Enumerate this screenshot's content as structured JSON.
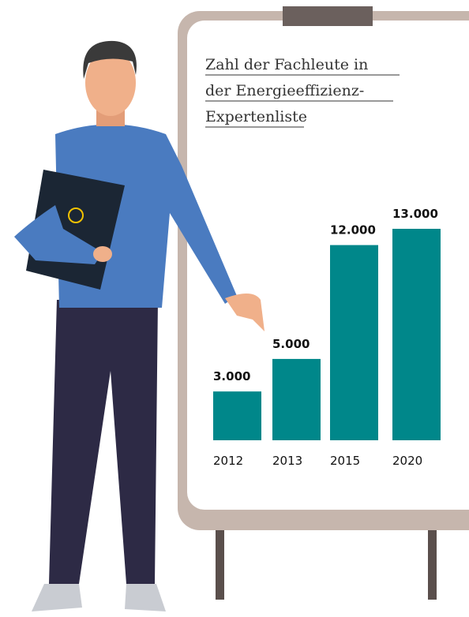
{
  "chart_data": {
    "type": "bar",
    "title": [
      "Zahl der Fachleute in",
      "der Energieeffizienz-",
      "Expertenliste"
    ],
    "categories": [
      "2012",
      "2013",
      "2015",
      "2020"
    ],
    "values": [
      3000,
      5000,
      12000,
      13000
    ],
    "value_labels": [
      "3.000",
      "5.000",
      "12.000",
      "13.000"
    ],
    "color": "#00878a"
  }
}
